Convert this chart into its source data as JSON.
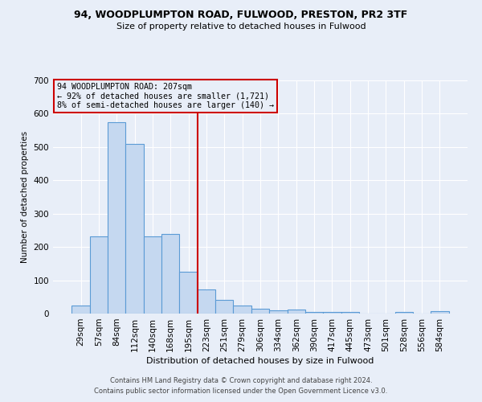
{
  "title1": "94, WOODPLUMPTON ROAD, FULWOOD, PRESTON, PR2 3TF",
  "title2": "Size of property relative to detached houses in Fulwood",
  "xlabel": "Distribution of detached houses by size in Fulwood",
  "ylabel": "Number of detached properties",
  "categories": [
    "29sqm",
    "57sqm",
    "84sqm",
    "112sqm",
    "140sqm",
    "168sqm",
    "195sqm",
    "223sqm",
    "251sqm",
    "279sqm",
    "306sqm",
    "334sqm",
    "362sqm",
    "390sqm",
    "417sqm",
    "445sqm",
    "473sqm",
    "501sqm",
    "528sqm",
    "556sqm",
    "584sqm"
  ],
  "values": [
    25,
    232,
    575,
    510,
    232,
    240,
    125,
    72,
    42,
    25,
    15,
    10,
    12,
    5,
    5,
    5,
    0,
    0,
    5,
    0,
    7
  ],
  "bar_color": "#c5d8f0",
  "bar_edge_color": "#5b9bd5",
  "vline_x_idx": 7,
  "vline_color": "#cc0000",
  "annotation_text": "94 WOODPLUMPTON ROAD: 207sqm\n← 92% of detached houses are smaller (1,721)\n8% of semi-detached houses are larger (140) →",
  "annotation_box_edge": "#cc0000",
  "footer1": "Contains HM Land Registry data © Crown copyright and database right 2024.",
  "footer2": "Contains public sector information licensed under the Open Government Licence v3.0.",
  "ylim": [
    0,
    700
  ],
  "yticks": [
    0,
    100,
    200,
    300,
    400,
    500,
    600,
    700
  ],
  "bg_color": "#e8eef8",
  "grid_color": "#ffffff"
}
